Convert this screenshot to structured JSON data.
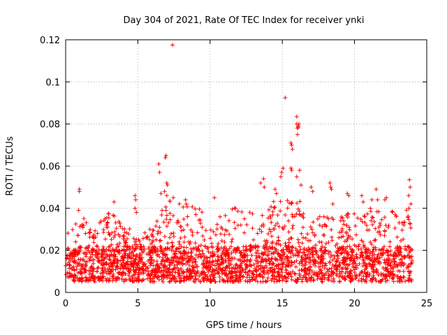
{
  "chart_data": {
    "type": "scatter",
    "title": "Day 304 of 2021, Rate Of TEC Index for receiver ynki",
    "xlabel": "GPS time / hours",
    "ylabel": "ROTI / TECUs",
    "xlim": [
      0,
      25
    ],
    "ylim": [
      0,
      0.12
    ],
    "xticks": [
      0,
      5,
      10,
      15,
      20,
      25
    ],
    "xtick_labels": [
      "0",
      "5",
      "10",
      "15",
      "20",
      "25"
    ],
    "yticks": [
      0,
      0.02,
      0.04,
      0.06,
      0.08,
      0.1,
      0.12
    ],
    "ytick_labels": [
      "0",
      "0.02",
      "0.04",
      "0.06",
      "0.08",
      "0.1",
      "0.12"
    ],
    "grid": true,
    "marker": "+",
    "color": "#ff0000",
    "data_span_hours": [
      0,
      24
    ],
    "baseline_band": [
      0.005,
      0.022
    ],
    "envelope": [
      {
        "x": 0,
        "top": 0.025
      },
      {
        "x": 1,
        "top": 0.033
      },
      {
        "x": 2,
        "top": 0.027
      },
      {
        "x": 3,
        "top": 0.034
      },
      {
        "x": 4,
        "top": 0.03
      },
      {
        "x": 5,
        "top": 0.024
      },
      {
        "x": 6,
        "top": 0.028
      },
      {
        "x": 7,
        "top": 0.04
      },
      {
        "x": 8,
        "top": 0.038
      },
      {
        "x": 9,
        "top": 0.038
      },
      {
        "x": 10,
        "top": 0.032
      },
      {
        "x": 11,
        "top": 0.034
      },
      {
        "x": 12,
        "top": 0.037
      },
      {
        "x": 13,
        "top": 0.034
      },
      {
        "x": 14,
        "top": 0.04
      },
      {
        "x": 15,
        "top": 0.04
      },
      {
        "x": 16,
        "top": 0.042
      },
      {
        "x": 17,
        "top": 0.033
      },
      {
        "x": 18,
        "top": 0.032
      },
      {
        "x": 19,
        "top": 0.033
      },
      {
        "x": 20,
        "top": 0.034
      },
      {
        "x": 21,
        "top": 0.036
      },
      {
        "x": 22,
        "top": 0.036
      },
      {
        "x": 23,
        "top": 0.034
      },
      {
        "x": 24,
        "top": 0.04
      }
    ],
    "notable_points": [
      {
        "x": 0.95,
        "y": 0.049
      },
      {
        "x": 0.95,
        "y": 0.048
      },
      {
        "x": 0.9,
        "y": 0.039
      },
      {
        "x": 3.35,
        "y": 0.043
      },
      {
        "x": 4.8,
        "y": 0.046
      },
      {
        "x": 4.85,
        "y": 0.044
      },
      {
        "x": 4.8,
        "y": 0.04
      },
      {
        "x": 4.9,
        "y": 0.038
      },
      {
        "x": 6.45,
        "y": 0.061
      },
      {
        "x": 6.5,
        "y": 0.057
      },
      {
        "x": 6.6,
        "y": 0.047
      },
      {
        "x": 6.9,
        "y": 0.064
      },
      {
        "x": 6.95,
        "y": 0.065
      },
      {
        "x": 7.0,
        "y": 0.052
      },
      {
        "x": 7.05,
        "y": 0.051
      },
      {
        "x": 6.85,
        "y": 0.048
      },
      {
        "x": 7.0,
        "y": 0.046
      },
      {
        "x": 7.4,
        "y": 0.1175
      },
      {
        "x": 7.45,
        "y": 0.045
      },
      {
        "x": 8.3,
        "y": 0.044
      },
      {
        "x": 8.35,
        "y": 0.042
      },
      {
        "x": 10.3,
        "y": 0.045
      },
      {
        "x": 13.5,
        "y": 0.052
      },
      {
        "x": 13.7,
        "y": 0.054
      },
      {
        "x": 13.75,
        "y": 0.05
      },
      {
        "x": 14.5,
        "y": 0.049
      },
      {
        "x": 14.6,
        "y": 0.047
      },
      {
        "x": 14.95,
        "y": 0.057
      },
      {
        "x": 14.9,
        "y": 0.055
      },
      {
        "x": 15.05,
        "y": 0.059
      },
      {
        "x": 15.2,
        "y": 0.0925
      },
      {
        "x": 15.6,
        "y": 0.071
      },
      {
        "x": 15.65,
        "y": 0.07
      },
      {
        "x": 15.7,
        "y": 0.068
      },
      {
        "x": 15.6,
        "y": 0.059
      },
      {
        "x": 15.65,
        "y": 0.058
      },
      {
        "x": 16.0,
        "y": 0.0835
      },
      {
        "x": 16.0,
        "y": 0.08
      },
      {
        "x": 16.1,
        "y": 0.079
      },
      {
        "x": 16.05,
        "y": 0.078
      },
      {
        "x": 16.15,
        "y": 0.08
      },
      {
        "x": 16.1,
        "y": 0.0785
      },
      {
        "x": 16.05,
        "y": 0.075
      },
      {
        "x": 16.2,
        "y": 0.058
      },
      {
        "x": 16.0,
        "y": 0.055
      },
      {
        "x": 16.3,
        "y": 0.051
      },
      {
        "x": 17.0,
        "y": 0.05
      },
      {
        "x": 17.1,
        "y": 0.048
      },
      {
        "x": 18.3,
        "y": 0.052
      },
      {
        "x": 18.35,
        "y": 0.05
      },
      {
        "x": 18.4,
        "y": 0.049
      },
      {
        "x": 18.5,
        "y": 0.042
      },
      {
        "x": 19.5,
        "y": 0.047
      },
      {
        "x": 19.6,
        "y": 0.046
      },
      {
        "x": 20.5,
        "y": 0.046
      },
      {
        "x": 20.6,
        "y": 0.043
      },
      {
        "x": 21.2,
        "y": 0.044
      },
      {
        "x": 21.5,
        "y": 0.049
      },
      {
        "x": 21.6,
        "y": 0.044
      },
      {
        "x": 22.1,
        "y": 0.044
      },
      {
        "x": 22.2,
        "y": 0.045
      },
      {
        "x": 23.8,
        "y": 0.0535
      },
      {
        "x": 23.85,
        "y": 0.05
      },
      {
        "x": 23.75,
        "y": 0.046
      },
      {
        "x": 23.9,
        "y": 0.042
      }
    ]
  }
}
